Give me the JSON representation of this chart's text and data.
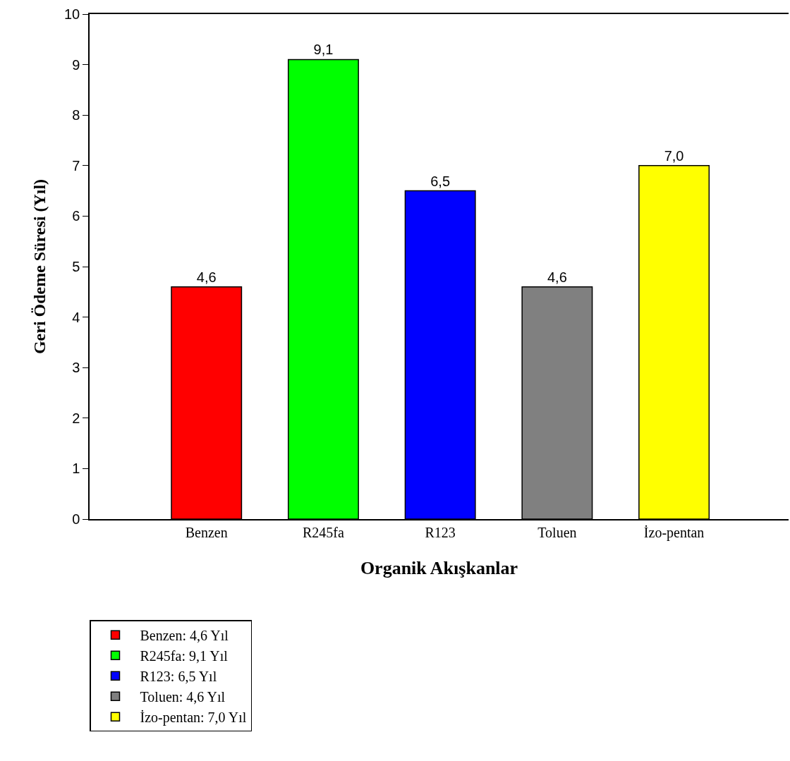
{
  "chart_data": {
    "type": "bar",
    "xlabel": "Organik Akışkanlar",
    "ylabel": "Geri Ödeme Süresi (Yıl)",
    "categories": [
      "Benzen",
      "R245fa",
      "R123",
      "Toluen",
      "İzo-pentan"
    ],
    "series": [
      {
        "name": "Benzen: 4,6 Yıl",
        "color": "#ff0000",
        "values": [
          4.6,
          null,
          null,
          null,
          null
        ],
        "value_labels": [
          "4,6",
          null,
          null,
          null,
          null
        ]
      },
      {
        "name": "R245fa: 9,1 Yıl",
        "color": "#00ff00",
        "values": [
          null,
          9.1,
          null,
          null,
          null
        ],
        "value_labels": [
          null,
          "9,1",
          null,
          null,
          null
        ]
      },
      {
        "name": "R123: 6,5 Yıl",
        "color": "#0000ff",
        "values": [
          null,
          null,
          6.5,
          null,
          null
        ],
        "value_labels": [
          null,
          null,
          "6,5",
          null,
          null
        ]
      },
      {
        "name": "Toluen: 4,6 Yıl",
        "color": "#808080",
        "values": [
          null,
          null,
          null,
          4.6,
          null
        ],
        "value_labels": [
          null,
          null,
          null,
          "4,6",
          null
        ]
      },
      {
        "name": "İzo-pentan: 7,0 Yıl",
        "color": "#ffff00",
        "values": [
          null,
          null,
          null,
          null,
          7.0
        ],
        "value_labels": [
          null,
          null,
          null,
          null,
          "7,0"
        ]
      }
    ],
    "ylim": [
      0,
      10
    ],
    "yticks": [
      0,
      1,
      2,
      3,
      4,
      5,
      6,
      7,
      8,
      9,
      10
    ],
    "legend": "bottom left"
  }
}
